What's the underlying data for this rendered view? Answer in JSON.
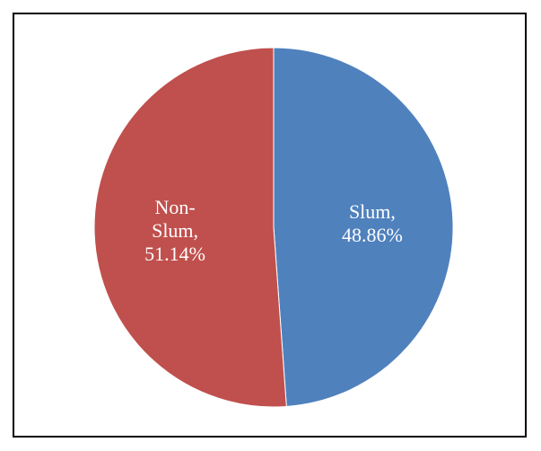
{
  "chart_data": {
    "type": "pie",
    "title": "",
    "categories": [
      "Slum",
      "Non-Slum"
    ],
    "values": [
      48.86,
      51.14
    ],
    "unit": "%",
    "colors": [
      "#4f81bd",
      "#c0504d"
    ],
    "legend": "none",
    "data_labels": [
      {
        "lines": [
          "Slum,",
          "48.86%"
        ]
      },
      {
        "lines": [
          "Non-",
          "Slum,",
          "51.14%"
        ]
      }
    ]
  }
}
